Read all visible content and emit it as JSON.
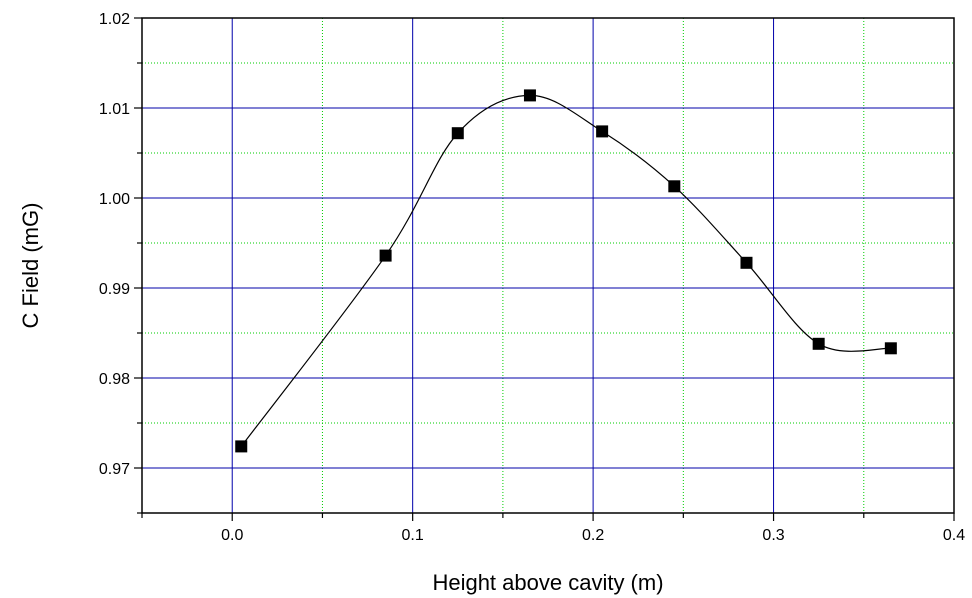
{
  "chart_data": {
    "type": "scatter",
    "xlabel": "Height above cavity (m)",
    "ylabel": "C Field (mG)",
    "xlim": [
      -0.05,
      0.4
    ],
    "ylim": [
      0.965,
      1.02
    ],
    "x_ticks": [
      0.0,
      0.1,
      0.2,
      0.3,
      0.4
    ],
    "x_tick_labels": [
      "0.0",
      "0.1",
      "0.2",
      "0.3",
      "0.4"
    ],
    "y_ticks": [
      0.97,
      0.98,
      0.99,
      1.0,
      1.01,
      1.02
    ],
    "y_tick_labels": [
      "0.97",
      "0.98",
      "0.99",
      "1.00",
      "1.01",
      "1.02"
    ],
    "major_grid": true,
    "minor_grid": true,
    "colors": {
      "major_grid": "#0000aa",
      "minor_grid": "#00cc00",
      "marker": "#000000",
      "curve": "#000000"
    },
    "series": [
      {
        "marker": "square",
        "smooth_curve": true,
        "x": [
          0.005,
          0.085,
          0.125,
          0.165,
          0.205,
          0.245,
          0.285,
          0.325,
          0.365
        ],
        "y": [
          0.9724,
          0.9936,
          1.0072,
          1.0114,
          1.0074,
          1.0013,
          0.9928,
          0.9838,
          0.9833
        ]
      }
    ]
  }
}
